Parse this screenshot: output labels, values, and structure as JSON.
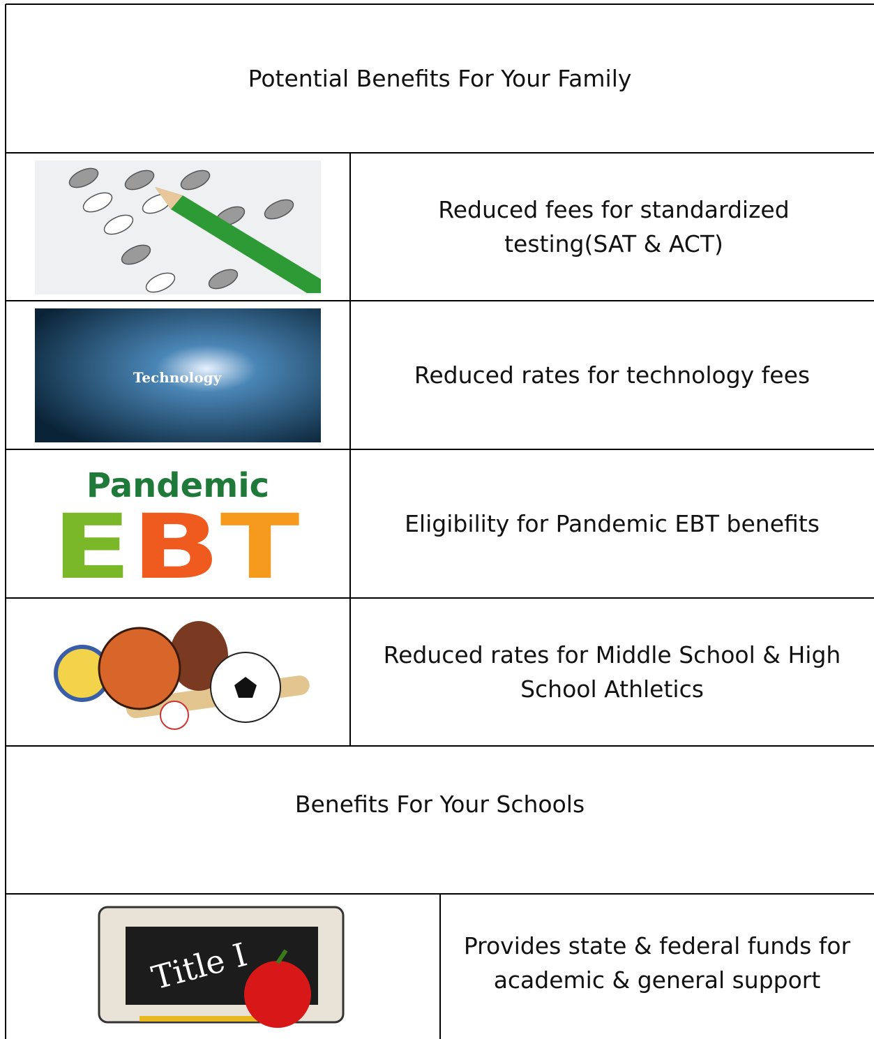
{
  "header": {
    "title": "Potential Benefits For Your Family"
  },
  "family_rows": [
    {
      "text": "Reduced fees for standardized testing(SAT & ACT)"
    },
    {
      "image_text": "Technology",
      "text": "Reduced rates for technology fees"
    },
    {
      "image_text": [
        "Pandemic",
        "EBT"
      ],
      "text": "Eligibility for Pandemic EBT benefits"
    },
    {
      "text": "Reduced rates for Middle School & High School Athletics"
    }
  ],
  "schools": {
    "title": "Benefits For Your Schools",
    "rows": [
      {
        "image_text": "Title I",
        "text": "Provides state & federal funds for academic & general support"
      }
    ]
  }
}
